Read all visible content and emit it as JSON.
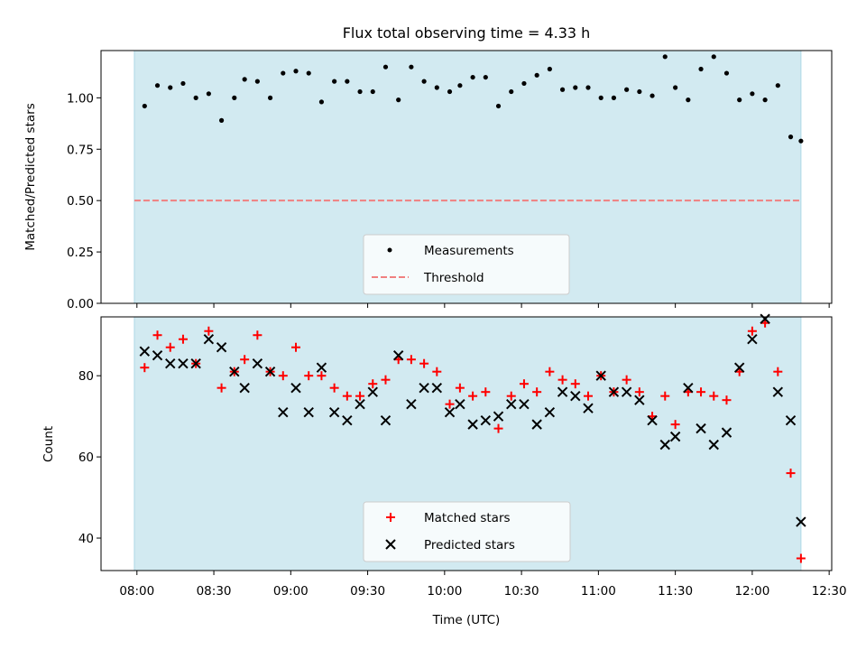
{
  "chart_data": [
    {
      "type": "scatter",
      "title": "Flux total observing time = 4.33 h",
      "xlabel": "",
      "ylabel": "Matched/Predicted stars",
      "ylim": [
        0,
        1.23
      ],
      "yticks": [
        0.0,
        0.25,
        0.5,
        0.75,
        1.0
      ],
      "ytick_labels": [
        "0.00",
        "0.25",
        "0.50",
        "0.75",
        "1.00"
      ],
      "xlim_minutes": [
        466,
        751
      ],
      "shaded_span_minutes": [
        479,
        739
      ],
      "colors": {
        "shade": "#add8e6",
        "measurement": "#000000",
        "threshold": "#f08080"
      },
      "legend": [
        "Measurements",
        "Threshold"
      ],
      "legend_loc": "lower center",
      "threshold": 0.5,
      "x_minutes": [
        483,
        488,
        493,
        498,
        503,
        508,
        513,
        518,
        522,
        527,
        532,
        537,
        542,
        547,
        552,
        557,
        562,
        567,
        572,
        577,
        582,
        587,
        592,
        597,
        602,
        606,
        611,
        616,
        621,
        626,
        631,
        636,
        641,
        646,
        651,
        656,
        661,
        666,
        671,
        676,
        681,
        686,
        690,
        695,
        700,
        705,
        710,
        715,
        720,
        725,
        730,
        735,
        739
      ],
      "values": [
        0.96,
        1.06,
        1.05,
        1.07,
        1.0,
        1.02,
        0.89,
        1.0,
        1.09,
        1.08,
        1.0,
        1.12,
        1.13,
        1.12,
        0.98,
        1.08,
        1.08,
        1.03,
        1.03,
        1.15,
        0.99,
        1.15,
        1.08,
        1.05,
        1.03,
        1.06,
        1.1,
        1.1,
        0.96,
        1.03,
        1.07,
        1.11,
        1.14,
        1.04,
        1.05,
        1.05,
        1.0,
        1.0,
        1.04,
        1.03,
        1.01,
        1.2,
        1.05,
        0.99,
        1.14,
        1.2,
        1.12,
        0.99,
        1.02,
        0.99,
        1.06,
        0.81,
        0.79
      ]
    },
    {
      "type": "scatter",
      "title": "",
      "xlabel": "Time (UTC)",
      "ylabel": "Count",
      "ylim": [
        32,
        94.5
      ],
      "yticks": [
        40,
        60,
        80
      ],
      "ytick_labels": [
        "40",
        "60",
        "80"
      ],
      "xlim_minutes": [
        466,
        751
      ],
      "xticks_minutes": [
        480,
        510,
        540,
        570,
        600,
        630,
        660,
        690,
        720,
        750
      ],
      "xtick_labels": [
        "08:00",
        "08:30",
        "09:00",
        "09:30",
        "10:00",
        "10:30",
        "11:00",
        "11:30",
        "12:00",
        "12:30"
      ],
      "shaded_span_minutes": [
        479,
        739
      ],
      "colors": {
        "shade": "#add8e6",
        "matched": "#ff0000",
        "predicted": "#000000"
      },
      "legend": [
        "Matched stars",
        "Predicted stars"
      ],
      "legend_loc": "lower center",
      "series": [
        {
          "name": "Matched stars",
          "marker": "+",
          "x_minutes": [
            483,
            488,
            493,
            498,
            503,
            508,
            513,
            518,
            522,
            527,
            532,
            537,
            542,
            547,
            552,
            557,
            562,
            567,
            572,
            577,
            582,
            587,
            592,
            597,
            602,
            606,
            611,
            616,
            621,
            626,
            631,
            636,
            641,
            646,
            651,
            656,
            661,
            666,
            671,
            676,
            681,
            686,
            690,
            695,
            700,
            705,
            710,
            715,
            720,
            725,
            730,
            735,
            739
          ],
          "values": [
            82,
            90,
            87,
            89,
            83,
            91,
            77,
            81,
            84,
            90,
            81,
            80,
            87,
            80,
            80,
            77,
            75,
            75,
            78,
            79,
            84,
            84,
            83,
            81,
            73,
            77,
            75,
            76,
            67,
            75,
            78,
            76,
            81,
            79,
            78,
            75,
            80,
            76,
            79,
            76,
            70,
            75,
            68,
            76,
            76,
            75,
            74,
            81,
            91,
            93,
            81,
            56,
            35
          ]
        },
        {
          "name": "Predicted stars",
          "marker": "x",
          "x_minutes": [
            483,
            488,
            493,
            498,
            503,
            508,
            513,
            518,
            522,
            527,
            532,
            537,
            542,
            547,
            552,
            557,
            562,
            567,
            572,
            577,
            582,
            587,
            592,
            597,
            602,
            606,
            611,
            616,
            621,
            626,
            631,
            636,
            641,
            646,
            651,
            656,
            661,
            666,
            671,
            676,
            681,
            686,
            690,
            695,
            700,
            705,
            710,
            715,
            720,
            725,
            730,
            735,
            739
          ],
          "values": [
            86,
            85,
            83,
            83,
            83,
            89,
            87,
            81,
            77,
            83,
            81,
            71,
            77,
            71,
            82,
            71,
            69,
            73,
            76,
            69,
            85,
            73,
            77,
            77,
            71,
            73,
            68,
            69,
            70,
            73,
            73,
            68,
            71,
            76,
            75,
            72,
            80,
            76,
            76,
            74,
            69,
            63,
            65,
            77,
            67,
            63,
            66,
            82,
            89,
            94,
            76,
            69,
            44
          ]
        }
      ]
    }
  ]
}
